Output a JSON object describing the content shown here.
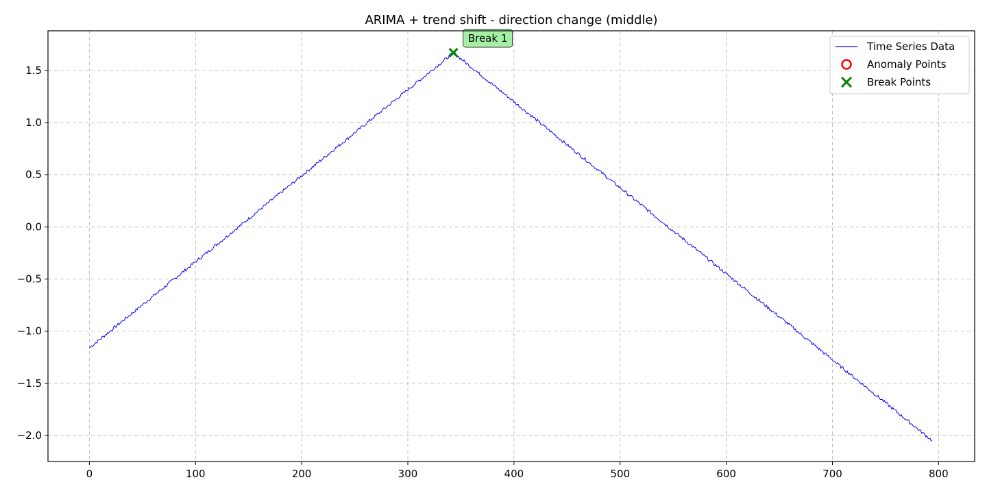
{
  "chart_data": {
    "type": "line",
    "title": "ARIMA + trend shift - direction change (middle)",
    "xlabel": "",
    "ylabel": "",
    "xlim": [
      -39,
      834
    ],
    "ylim": [
      -2.25,
      1.88
    ],
    "x_ticks": [
      0,
      100,
      200,
      300,
      400,
      500,
      600,
      700,
      800
    ],
    "y_ticks": [
      -2.0,
      -1.5,
      -1.0,
      -0.5,
      0.0,
      0.5,
      1.0,
      1.5
    ],
    "x_tick_labels": [
      "0",
      "100",
      "200",
      "300",
      "400",
      "500",
      "600",
      "700",
      "800"
    ],
    "y_tick_labels": [
      "−2.0",
      "−1.5",
      "−1.0",
      "−0.5",
      "0.0",
      "0.5",
      "1.0",
      "1.5"
    ],
    "grid": true,
    "legend_position": "top-right",
    "series": [
      {
        "name": "Time Series Data",
        "color": "#0000ff",
        "segments": [
          {
            "x_start": 0,
            "x_end": 343,
            "y_start": -1.16,
            "y_end": 1.67
          },
          {
            "x_start": 343,
            "x_end": 794,
            "y_start": 1.67,
            "y_end": -2.05
          }
        ]
      }
    ],
    "anomaly_points": [],
    "break_points": [
      {
        "x": 343,
        "y": 1.67,
        "label": "Break 1"
      }
    ],
    "legend": [
      {
        "label": "Time Series Data",
        "marker": "line",
        "color": "#0000ff"
      },
      {
        "label": "Anomaly Points",
        "marker": "circle",
        "color": "#ff0000"
      },
      {
        "label": "Break Points",
        "marker": "x",
        "color": "#008000"
      }
    ]
  }
}
